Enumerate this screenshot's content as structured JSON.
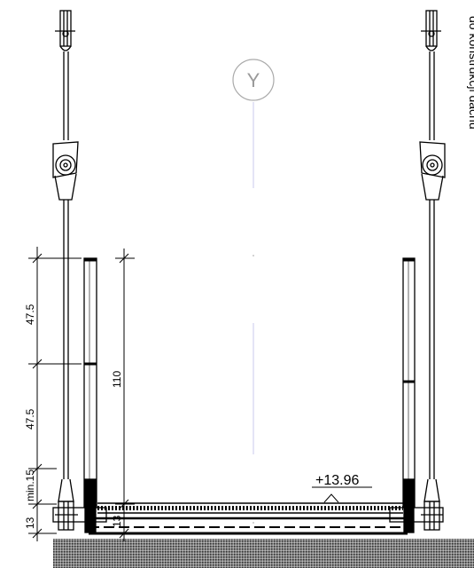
{
  "drawing": {
    "grid_axis_label": "Y",
    "side_note": "do konstrukcji dachu",
    "level_mark": "+13.96",
    "dimensions": {
      "upper_rail_spacing": "47.5",
      "lower_rail_spacing": "47.5",
      "min_clearance": "min.15",
      "base_depth": "13",
      "beam_depth": "13",
      "railing_height": "110"
    }
  }
}
